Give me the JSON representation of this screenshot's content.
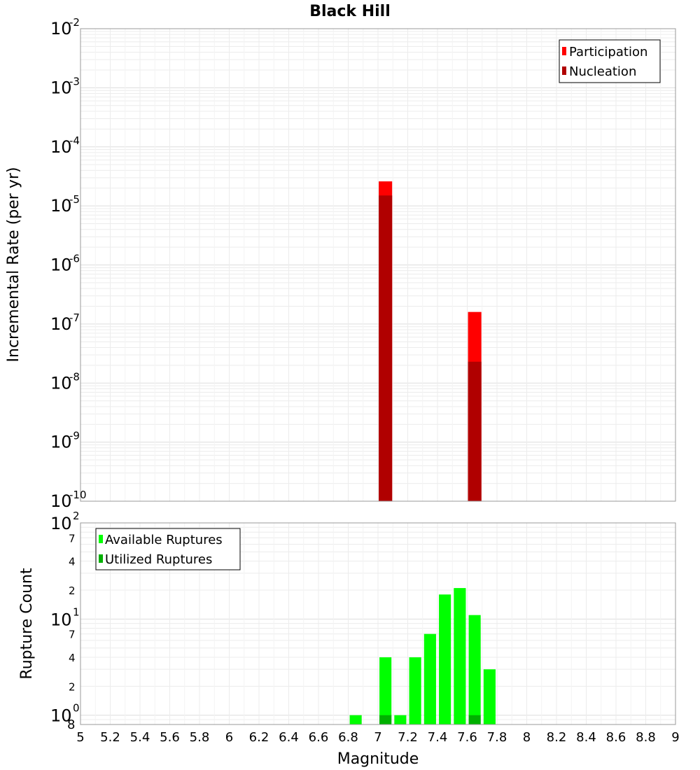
{
  "chart_data": [
    {
      "type": "bar",
      "title": "Black Hill",
      "xlabel": "",
      "ylabel": "Incremental Rate (per yr)",
      "xlim": [
        5,
        9
      ],
      "ylim": [
        1e-10,
        0.01
      ],
      "yscale": "log",
      "grid": true,
      "legend_position": "top-right",
      "bar_width": 0.09,
      "y_tick_labels": [
        {
          "base": "10",
          "exp": "-10"
        },
        {
          "base": "10",
          "exp": "-9"
        },
        {
          "base": "10",
          "exp": "-8"
        },
        {
          "base": "10",
          "exp": "-7"
        },
        {
          "base": "10",
          "exp": "-6"
        },
        {
          "base": "10",
          "exp": "-5"
        },
        {
          "base": "10",
          "exp": "-4"
        },
        {
          "base": "10",
          "exp": "-3"
        },
        {
          "base": "10",
          "exp": "-2"
        }
      ],
      "series": [
        {
          "name": "Participation",
          "color": "#ff0000",
          "x": [
            7.05,
            7.65
          ],
          "values": [
            2.6e-05,
            1.6e-07
          ]
        },
        {
          "name": "Nucleation",
          "color": "#b00000",
          "x": [
            7.05,
            7.65
          ],
          "values": [
            1.5e-05,
            2.3e-08
          ]
        }
      ]
    },
    {
      "type": "bar",
      "title": "",
      "xlabel": "Magnitude",
      "ylabel": "Rupture Count",
      "xlim": [
        5,
        9
      ],
      "ylim": [
        0.8,
        100
      ],
      "yscale": "log",
      "grid": true,
      "legend_position": "top-left",
      "bar_width": 0.09,
      "x_ticks": [
        "5",
        "5.2",
        "5.4",
        "5.6",
        "5.8",
        "6",
        "6.2",
        "6.4",
        "6.6",
        "6.8",
        "7",
        "7.2",
        "7.4",
        "7.6",
        "7.8",
        "8",
        "8.2",
        "8.4",
        "8.6",
        "8.8",
        "9"
      ],
      "y_tick_labels": [
        {
          "base": "10",
          "exp": "0"
        },
        {
          "base": "10",
          "exp": "1"
        },
        {
          "base": "10",
          "exp": "2"
        }
      ],
      "y_minor_tick_labels": [
        "8",
        "2",
        "4",
        "7",
        "2",
        "4",
        "7"
      ],
      "series": [
        {
          "name": "Available Ruptures",
          "color": "#00ff00",
          "x": [
            6.85,
            7.05,
            7.15,
            7.25,
            7.35,
            7.45,
            7.55,
            7.65,
            7.75
          ],
          "values": [
            1,
            4,
            1,
            4,
            7,
            18,
            21,
            11,
            3
          ]
        },
        {
          "name": "Utilized Ruptures",
          "color": "#00b000",
          "x": [
            7.05,
            7.65
          ],
          "values": [
            1,
            1
          ]
        }
      ]
    }
  ]
}
